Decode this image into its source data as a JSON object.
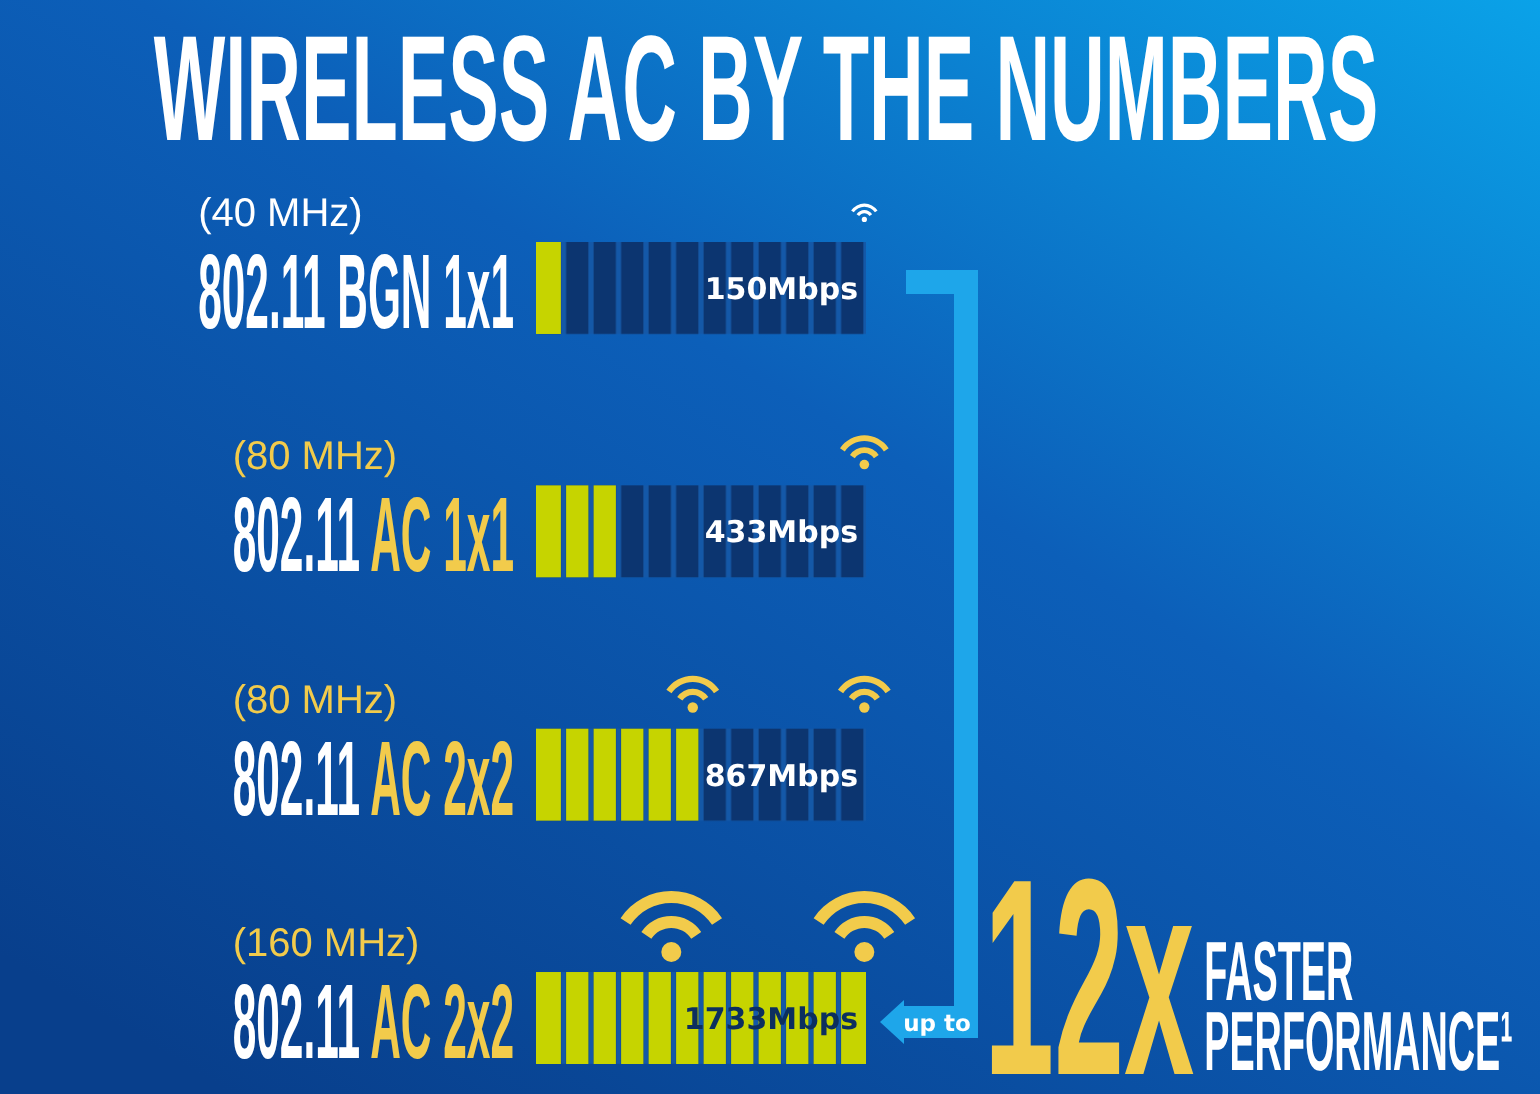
{
  "chart_data": {
    "type": "bar",
    "orientation": "horizontal",
    "title": "WIRELESS AC BY THE NUMBERS",
    "categories": [
      "(40 MHz)\n802.11 BGN 1x1",
      "(80 MHz)\n802.11 AC 1x1",
      "(80 MHz)\n802.11 AC 2x2",
      "(160 MHz)\n802.11 AC 2x2"
    ],
    "values": [
      150,
      433,
      867,
      1733
    ],
    "value_labels": [
      "150Mbps",
      "433Mbps",
      "867Mbps",
      "1733Mbps"
    ],
    "color": "#c6d400",
    "annotations": [
      "up to",
      "12x",
      "FASTER PERFORMANCE¹"
    ]
  }
}
